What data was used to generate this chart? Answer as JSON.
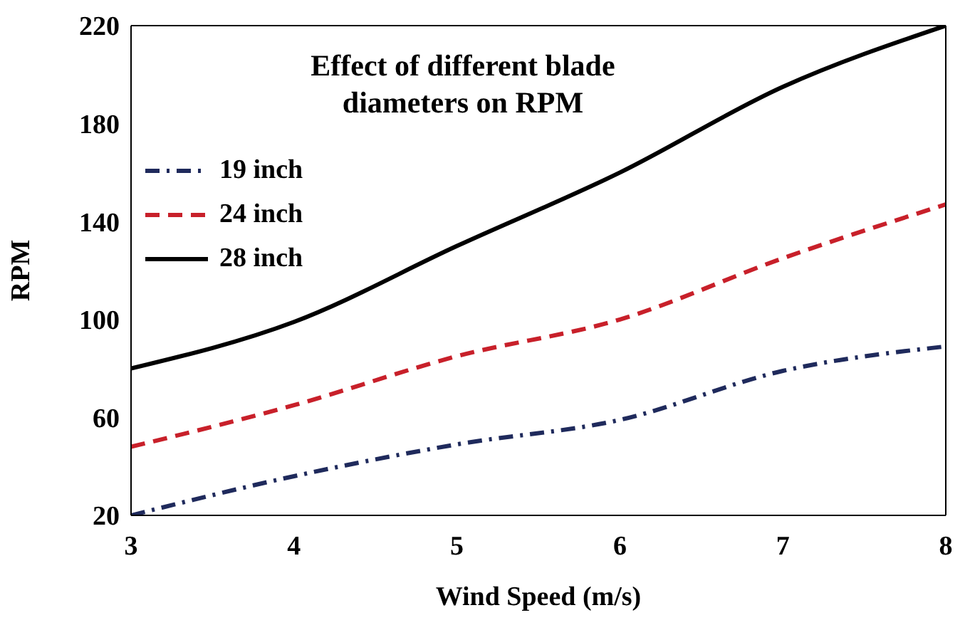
{
  "chart_data": {
    "type": "line",
    "title": "Effect of different blade diameters on RPM",
    "xlabel": "Wind Speed (m/s)",
    "ylabel": "RPM",
    "x": [
      3,
      4,
      5,
      6,
      7,
      8
    ],
    "xlim": [
      3,
      8
    ],
    "xticks": [
      3,
      4,
      5,
      6,
      7,
      8
    ],
    "ylim": [
      20,
      220
    ],
    "yticks": [
      20,
      60,
      100,
      140,
      180,
      220
    ],
    "legend": "top left",
    "marker": "none",
    "series": [
      {
        "name": "19 inch",
        "color": "#1f2a5c",
        "line_style": "dashdot",
        "values": [
          20,
          36,
          49,
          59,
          79,
          89
        ]
      },
      {
        "name": "24 inch",
        "color": "#c8202a",
        "line_style": "dashed",
        "values": [
          48,
          65,
          85,
          100,
          125,
          147
        ]
      },
      {
        "name": "28 inch",
        "color": "#000000",
        "line_style": "solid",
        "values": [
          80,
          99,
          130,
          160,
          195,
          220
        ]
      }
    ]
  }
}
